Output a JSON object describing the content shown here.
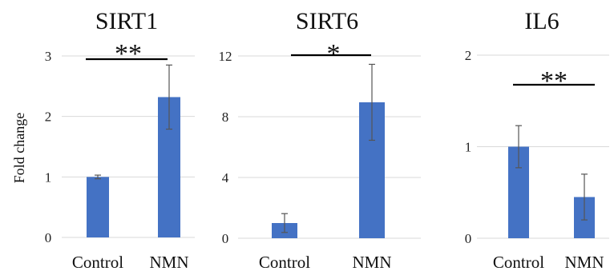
{
  "chart_data": [
    {
      "type": "bar",
      "title": "SIRT1",
      "ylabel": "Fold change",
      "categories": [
        "Control",
        "NMN"
      ],
      "values": [
        1.0,
        2.32
      ],
      "errors": [
        0.03,
        0.53
      ],
      "ylim": [
        0,
        3
      ],
      "yticks": [
        "0",
        "1",
        "2",
        "3"
      ],
      "grid": true,
      "significance": {
        "label": "**",
        "between": [
          "Control",
          "NMN"
        ]
      },
      "color": "#4472C4"
    },
    {
      "type": "bar",
      "title": "SIRT6",
      "ylabel": "",
      "categories": [
        "Control",
        "NMN"
      ],
      "values": [
        1.0,
        8.95
      ],
      "errors": [
        0.62,
        2.5
      ],
      "ylim": [
        0,
        12
      ],
      "yticks": [
        "0",
        "4",
        "8",
        "12"
      ],
      "grid": true,
      "significance": {
        "label": "*",
        "between": [
          "Control",
          "NMN"
        ]
      },
      "color": "#4472C4"
    },
    {
      "type": "bar",
      "title": "IL6",
      "ylabel": "",
      "categories": [
        "Control",
        "NMN"
      ],
      "values": [
        1.0,
        0.45
      ],
      "errors": [
        0.23,
        0.25
      ],
      "ylim": [
        0,
        2
      ],
      "yticks": [
        "0",
        "1",
        "2"
      ],
      "grid": true,
      "significance": {
        "label": "**",
        "between": [
          "Control",
          "NMN"
        ]
      },
      "color": "#4472C4"
    }
  ]
}
